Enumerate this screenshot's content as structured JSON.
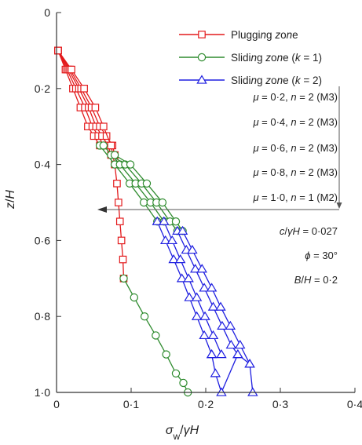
{
  "chart_data": {
    "type": "line",
    "xlabel": "σw/γH",
    "ylabel": "z/H",
    "xlim": [
      0,
      0.4
    ],
    "ylim": [
      0,
      1.0
    ],
    "y_inverted": true,
    "x_ticks": [
      {
        "v": 0,
        "label": "0"
      },
      {
        "v": 0.1,
        "label": "0·1"
      },
      {
        "v": 0.2,
        "label": "0·2"
      },
      {
        "v": 0.3,
        "label": "0·3"
      },
      {
        "v": 0.4,
        "label": "0·4"
      }
    ],
    "y_ticks": [
      {
        "v": 0,
        "label": "0"
      },
      {
        "v": 0.2,
        "label": "0·2"
      },
      {
        "v": 0.4,
        "label": "0·4"
      },
      {
        "v": 0.6,
        "label": "0·6"
      },
      {
        "v": 0.8,
        "label": "0·8"
      },
      {
        "v": 1.0,
        "label": "1·0"
      }
    ],
    "grid": false,
    "legend": {
      "position": "top-right",
      "entries": [
        {
          "label": "Plugging zone",
          "color": "#e31a1c",
          "marker": "square"
        },
        {
          "label": "Sliding zone (k = 1)",
          "color": "#2e8b2e",
          "marker": "circle"
        },
        {
          "label": "Sliding zone (k = 2)",
          "color": "#1f1fe0",
          "marker": "triangle"
        }
      ]
    },
    "arrow_annotations": [
      "μ = 0·2, n = 2 (M3)",
      "μ = 0·4, n = 2 (M3)",
      "μ = 0·6, n = 2 (M3)",
      "μ = 0·8, n = 2 (M3)",
      "μ = 1·0, n = 1 (M2)"
    ],
    "parameters": [
      "c/γH = 0·027",
      "ϕ = 30°",
      "B/H = 0·2"
    ],
    "curves": [
      {
        "zone": "plugging",
        "color": "#e31a1c",
        "marker": "square",
        "x": [
          0.002,
          0.012,
          0.022,
          0.032,
          0.042,
          0.05,
          0.058
        ],
        "y": [
          0.1,
          0.15,
          0.2,
          0.25,
          0.3,
          0.325,
          0.35
        ]
      },
      {
        "zone": "plugging",
        "color": "#e31a1c",
        "marker": "square",
        "x": [
          0.002,
          0.014,
          0.026,
          0.038,
          0.048,
          0.056,
          0.063
        ],
        "y": [
          0.1,
          0.15,
          0.2,
          0.25,
          0.3,
          0.325,
          0.35
        ]
      },
      {
        "zone": "plugging",
        "color": "#e31a1c",
        "marker": "square",
        "x": [
          0.002,
          0.016,
          0.03,
          0.043,
          0.053,
          0.061,
          0.069,
          0.073
        ],
        "y": [
          0.1,
          0.15,
          0.2,
          0.25,
          0.3,
          0.325,
          0.35,
          0.375
        ]
      },
      {
        "zone": "plugging",
        "color": "#e31a1c",
        "marker": "square",
        "x": [
          0.002,
          0.018,
          0.033,
          0.047,
          0.058,
          0.067,
          0.075,
          0.078
        ],
        "y": [
          0.1,
          0.15,
          0.2,
          0.25,
          0.3,
          0.325,
          0.35,
          0.375
        ]
      },
      {
        "zone": "plugging",
        "color": "#e31a1c",
        "marker": "square",
        "x": [
          0.002,
          0.02,
          0.037,
          0.052,
          0.063,
          0.073,
          0.078,
          0.081,
          0.083,
          0.085,
          0.087,
          0.089,
          0.09
        ],
        "y": [
          0.1,
          0.15,
          0.2,
          0.25,
          0.3,
          0.35,
          0.4,
          0.45,
          0.5,
          0.55,
          0.6,
          0.65,
          0.7
        ]
      },
      {
        "zone": "sliding-k1",
        "color": "#2e8b2e",
        "marker": "circle",
        "x": [
          0.058,
          0.078,
          0.098,
          0.117,
          0.135
        ],
        "y": [
          0.35,
          0.4,
          0.45,
          0.5,
          0.55
        ]
      },
      {
        "zone": "sliding-k1",
        "color": "#2e8b2e",
        "marker": "circle",
        "x": [
          0.063,
          0.085,
          0.106,
          0.126,
          0.144
        ],
        "y": [
          0.35,
          0.4,
          0.45,
          0.5,
          0.55
        ]
      },
      {
        "zone": "sliding-k1",
        "color": "#2e8b2e",
        "marker": "circle",
        "x": [
          0.073,
          0.092,
          0.114,
          0.134,
          0.152,
          0.162
        ],
        "y": [
          0.375,
          0.4,
          0.45,
          0.5,
          0.55,
          0.575
        ]
      },
      {
        "zone": "sliding-k1",
        "color": "#2e8b2e",
        "marker": "circle",
        "x": [
          0.078,
          0.099,
          0.121,
          0.142,
          0.16,
          0.169
        ],
        "y": [
          0.375,
          0.4,
          0.45,
          0.5,
          0.55,
          0.575
        ]
      },
      {
        "zone": "sliding-k1",
        "color": "#2e8b2e",
        "marker": "circle",
        "x": [
          0.09,
          0.104,
          0.118,
          0.133,
          0.147,
          0.16,
          0.17,
          0.176
        ],
        "y": [
          0.7,
          0.75,
          0.8,
          0.85,
          0.9,
          0.95,
          0.975,
          1.0
        ]
      },
      {
        "zone": "sliding-k2",
        "color": "#1f1fe0",
        "marker": "triangle",
        "x": [
          0.135,
          0.146,
          0.157,
          0.168,
          0.178,
          0.188,
          0.198,
          0.208
        ],
        "y": [
          0.55,
          0.6,
          0.65,
          0.7,
          0.75,
          0.8,
          0.85,
          0.9
        ]
      },
      {
        "zone": "sliding-k2",
        "color": "#1f1fe0",
        "marker": "triangle",
        "x": [
          0.144,
          0.155,
          0.166,
          0.177,
          0.188,
          0.199,
          0.21,
          0.221
        ],
        "y": [
          0.55,
          0.6,
          0.65,
          0.7,
          0.75,
          0.8,
          0.85,
          0.9
        ]
      },
      {
        "zone": "sliding-k2",
        "color": "#1f1fe0",
        "marker": "triangle",
        "x": [
          0.162,
          0.174,
          0.186,
          0.198,
          0.21,
          0.222,
          0.234,
          0.243
        ],
        "y": [
          0.575,
          0.625,
          0.675,
          0.725,
          0.775,
          0.825,
          0.875,
          0.9
        ]
      },
      {
        "zone": "sliding-k2",
        "color": "#1f1fe0",
        "marker": "triangle",
        "x": [
          0.169,
          0.182,
          0.195,
          0.208,
          0.22,
          0.233,
          0.246,
          0.259
        ],
        "y": [
          0.575,
          0.625,
          0.675,
          0.725,
          0.775,
          0.825,
          0.875,
          0.925
        ]
      },
      {
        "zone": "sliding-k2",
        "color": "#1f1fe0",
        "marker": "triangle",
        "x": [
          0.208,
          0.213,
          0.221,
          0.243,
          0.259,
          0.263
        ],
        "y": [
          0.9,
          0.95,
          1.0,
          0.9,
          0.925,
          1.0
        ]
      }
    ]
  }
}
